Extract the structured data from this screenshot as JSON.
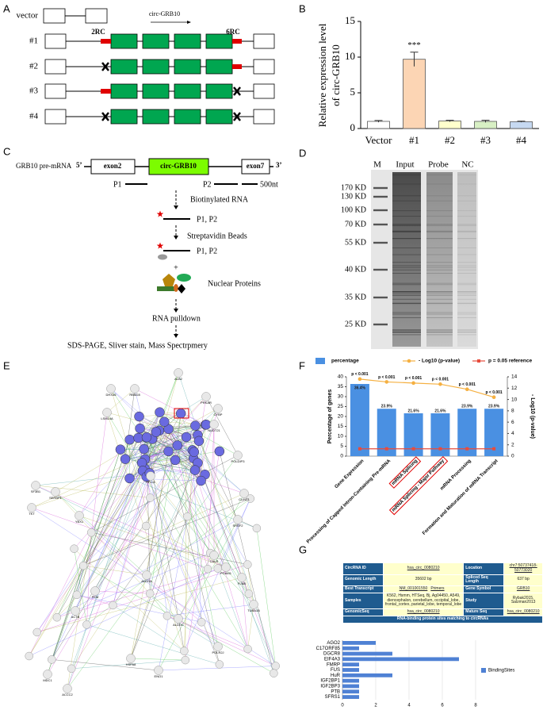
{
  "panel_labels": [
    "A",
    "B",
    "C",
    "D",
    "E",
    "F",
    "G"
  ],
  "construct_diagram": {
    "rows": [
      "vector",
      "#1",
      "#2",
      "#3",
      "#4"
    ],
    "transcript_label": "circ-GRB10",
    "site_labels": [
      "2RC",
      "6RC"
    ]
  },
  "pulldown_diagram": {
    "gene_label": "GRB10 pre-mRNA",
    "five_prime": "5’",
    "three_prime": "3’",
    "exon_left": "exon2",
    "circ_label": "circ-GRB10",
    "exon_right": "exon7",
    "probes": [
      "P1",
      "P2"
    ],
    "scale_label": "500nt",
    "steps": [
      "Biotinylated RNA",
      "P1,  P2",
      "Streptavidin Beads",
      "P1,  P2",
      "+",
      "Nuclear Proteins",
      "RNA pulldown",
      "SDS-PAGE, Sliver stain, Mass Spectrpmery"
    ]
  },
  "gel": {
    "lanes": [
      "M",
      "Input",
      "Probe",
      "NC"
    ],
    "markers": [
      "170 KD",
      "130 KD",
      "100 KD",
      "70 KD",
      "55 KD",
      "40 KD",
      "35 KD",
      "25 KD"
    ]
  },
  "network": {
    "nodes": [
      "DHX36",
      "RBM28",
      "LSM14A",
      "ALB2",
      "PRKAR",
      "CYBP",
      "NUDT21",
      "POLDIP3",
      "CLINT1",
      "SRSF2",
      "SF3B1",
      "SERBP1",
      "TKT",
      "YBX1",
      "CALR",
      "PGAM1",
      "FLNB",
      "TUBA1B",
      "POLR2J",
      "RPL11",
      "ALDOA",
      "ALDOC",
      "PKM",
      "ACTB",
      "HSPA8",
      "ENO1",
      "MDC1",
      "ACCC2"
    ]
  },
  "circ_table": {
    "rows": [
      [
        "CircRNA ID",
        "hsa_circ_0080210",
        "Location",
        "chr7:50737418-50773020"
      ],
      [
        "Genomic Length",
        "35602 bp",
        "Spliced Seq Length",
        "637 bp"
      ],
      [
        "Best Transcript",
        [
          "NM_001001550",
          "Primers"
        ],
        "Gene Symbol",
        "GRB10"
      ],
      [
        "Samples",
        "K562, Hsmm, HTSeq, Bj, Ag04450, A549, diencephalon, cerebellum, occipital_lobe, frontal_cortex, parietal_lobe, temporal_lobe",
        "Study",
        "Rybak2015, Salzman2013"
      ],
      [
        "GenomicSeq",
        "hsa_circ_0080210",
        "Mature Seq",
        "hsa_circ_0080210"
      ]
    ],
    "footer": "RNA-binding protein sites matching to circRNAs"
  },
  "chart_data": [
    {
      "type": "bar",
      "categories": [
        "Vector",
        "#1",
        "#2",
        "#3",
        "#4"
      ],
      "values": [
        1.0,
        9.7,
        1.05,
        1.0,
        0.95
      ],
      "errors": [
        0.12,
        1.0,
        0.1,
        0.15,
        0.08
      ],
      "colors": [
        "#ffffff",
        "#fcd5b4",
        "#ffffcc",
        "#d8f0c4",
        "#c6d9f1"
      ],
      "significance": [
        null,
        "***",
        null,
        null,
        null
      ],
      "ylabel": [
        "Relative expression level",
        "of circ-GRB10"
      ],
      "ylim": [
        0,
        15
      ],
      "yticks": [
        0,
        5,
        10,
        15
      ]
    },
    {
      "type": "bar_line",
      "categories": [
        "Gene Expression",
        "Processing of Capped Intron-Containing Pre-mRNA",
        "mRNA Splicing",
        "mRNA Splicing - Major Pathway",
        "mRNA Processing",
        "Formation and Maturation of mRNA Transcript"
      ],
      "highlighted": [
        false,
        false,
        true,
        true,
        false,
        false
      ],
      "series": [
        {
          "name": "percentage",
          "kind": "bar",
          "color": "#4a90e2",
          "values": [
            36.4,
            23.9,
            21.6,
            21.6,
            23.9,
            23.9
          ],
          "value_labels": [
            "36.4%",
            "23.9%",
            "21.6%",
            "21.6%",
            "23.9%",
            "23.9%"
          ]
        },
        {
          "name": "- Log10 (p-value)",
          "kind": "line",
          "axis": "y2",
          "color": "#f5b041",
          "values": [
            13.6,
            13.1,
            12.9,
            12.7,
            11.8,
            10.4
          ]
        },
        {
          "name": "p = 0.05 reference",
          "kind": "line",
          "axis": "y2",
          "color": "#e74c3c",
          "values": [
            1.3,
            1.3,
            1.3,
            1.3,
            1.3,
            1.3
          ]
        }
      ],
      "annotations": [
        "p < 0.001",
        "p < 0.001",
        "p < 0.001",
        "p < 0.001",
        "p < 0.001",
        "p < 0.001"
      ],
      "ylabel": "Percentage of genes",
      "y2label": "- Log10 (p-value)",
      "ylim": [
        0,
        40
      ],
      "yticks": [
        0,
        5,
        10,
        15,
        20,
        25,
        30,
        35,
        40
      ],
      "y2lim": [
        0,
        14
      ],
      "y2ticks": [
        0,
        2,
        4,
        6,
        8,
        10,
        12,
        14
      ],
      "legend": "top"
    },
    {
      "type": "barh",
      "categories": [
        "AGO2",
        "C17ORF85",
        "DGCR8",
        "EIF4A3",
        "FMRP",
        "FUS",
        "HuR",
        "IGF2BP1",
        "IGF2BP3",
        "PTB",
        "SFRS1"
      ],
      "series": [
        {
          "name": "BindingSites",
          "color": "#4f81d4",
          "values": [
            2,
            1,
            3,
            7,
            1,
            1,
            3,
            1,
            1,
            1,
            1
          ]
        }
      ],
      "xlim": [
        0,
        8
      ],
      "xticks": [
        0,
        2,
        4,
        6,
        8
      ],
      "grid": true,
      "legend": "right"
    }
  ]
}
